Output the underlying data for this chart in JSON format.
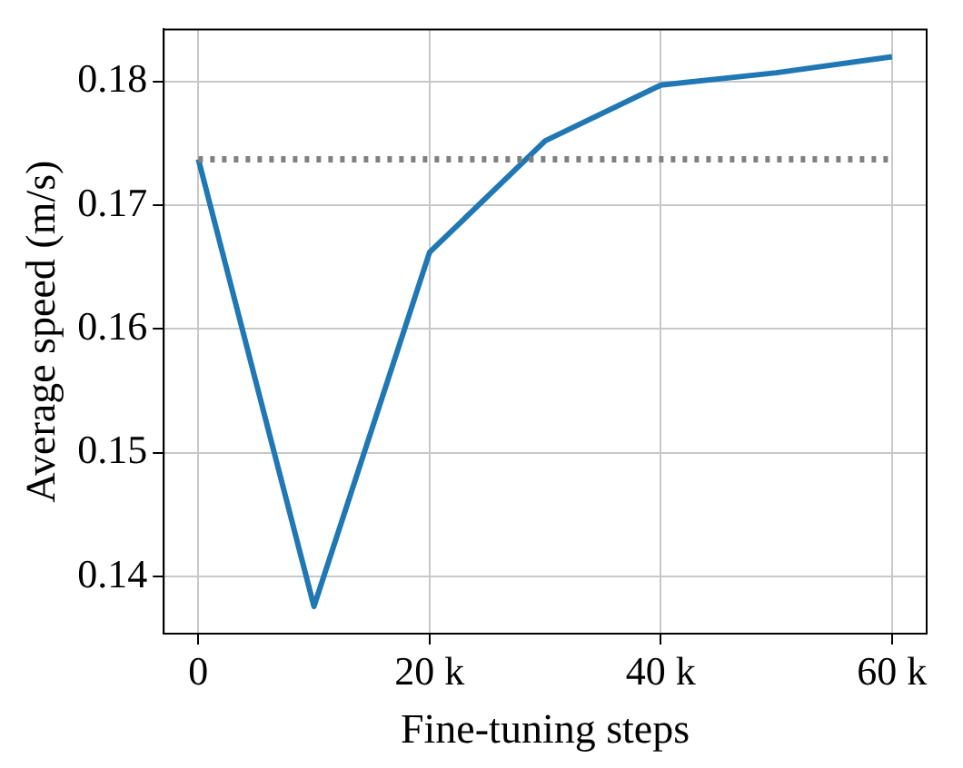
{
  "chart_data": {
    "type": "line",
    "xlabel": "Fine-tuning steps",
    "ylabel": "Average speed (m/s)",
    "x": [
      0,
      10000,
      20000,
      30000,
      40000,
      50000,
      60000
    ],
    "series": [
      {
        "color": "#1f77b4",
        "values": [
          0.1737,
          0.1376,
          0.1662,
          0.1752,
          0.1797,
          0.1807,
          0.182
        ]
      }
    ],
    "xlim": [
      -3000,
      63000
    ],
    "xticks": [
      0,
      {
        "value": 20000,
        "label": "20 k"
      },
      {
        "value": 40000,
        "label": "40 k"
      },
      {
        "value": 60000,
        "label": "60 k"
      }
    ],
    "ylim": [
      0.1354,
      0.1842
    ],
    "yticks": [
      0.14,
      0.15,
      0.16,
      0.17,
      0.18
    ],
    "ref_lines": [
      {
        "axis": "y",
        "value": 0.1737,
        "color": "#808080",
        "line_style": "dotted"
      }
    ],
    "grid": true,
    "legend": false,
    "marker": "none",
    "line_style": "solid"
  }
}
